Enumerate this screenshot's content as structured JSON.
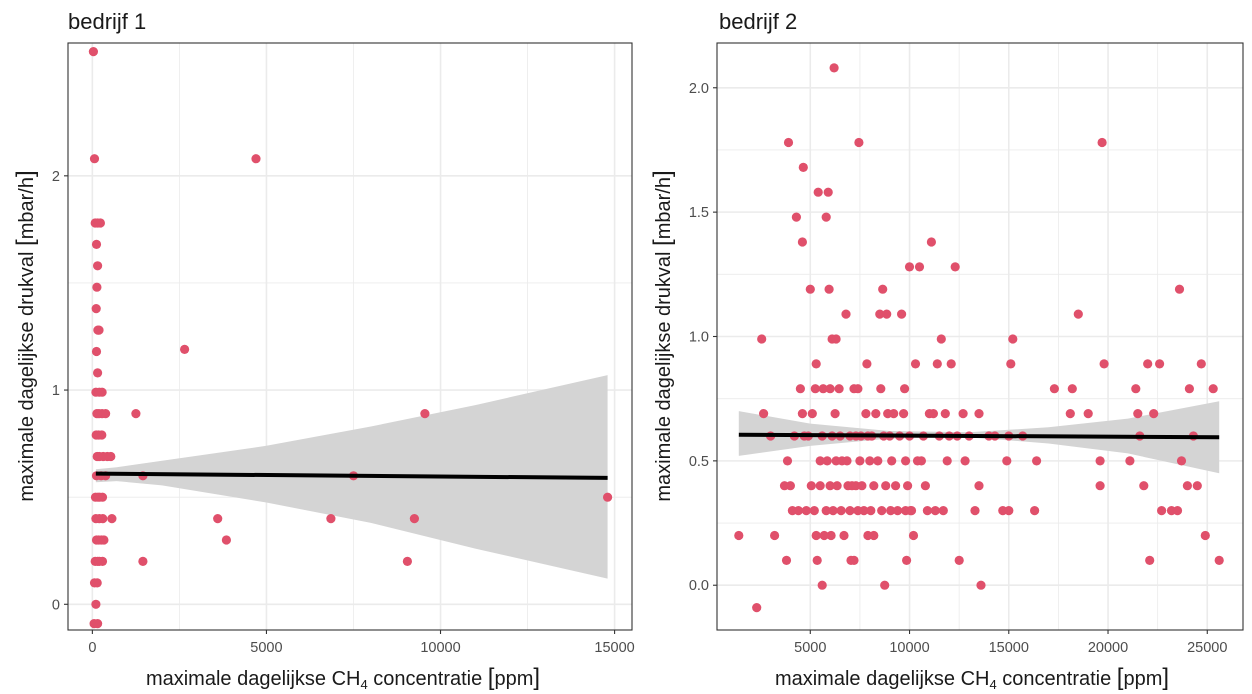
{
  "colors": {
    "point": "#e0506b",
    "fit_line": "#000000",
    "confidence_band": "#d4d4d4",
    "grid": "#ebebeb",
    "panel_border": "#333333",
    "text": "#1a1a1a",
    "tick_text": "#4d4d4d"
  },
  "chart_data": [
    {
      "type": "scatter",
      "title": "bedrijf 1",
      "xlabel": {
        "pre": "maximale dagelijkse CH",
        "sub": "4",
        "post": " concentratie ",
        "lb": "[",
        "unit": "ppm",
        "rb": "]"
      },
      "ylabel": {
        "pre": "maximale dagelijkse drukval ",
        "lb": "[",
        "unit": "mbar/h",
        "rb": "]"
      },
      "xlim": [
        -700,
        15500
      ],
      "ylim": [
        -0.12,
        2.62
      ],
      "xticks": [
        0,
        5000,
        10000,
        15000
      ],
      "xtick_labels": [
        "0",
        "5000",
        "10000",
        "15000"
      ],
      "yticks": [
        0,
        1,
        2
      ],
      "ytick_labels": [
        "0",
        "1",
        "2"
      ],
      "grid": true,
      "fit": {
        "x0": 100,
        "y0": 0.61,
        "x1": 14800,
        "y1": 0.59
      },
      "ribbon": {
        "x": [
          100,
          700,
          2000,
          5000,
          8000,
          11000,
          14800
        ],
        "upper": [
          0.63,
          0.64,
          0.67,
          0.74,
          0.83,
          0.93,
          1.07
        ],
        "lower": [
          0.57,
          0.575,
          0.555,
          0.475,
          0.38,
          0.26,
          0.12
        ]
      },
      "points": [
        [
          30,
          2.58
        ],
        [
          60,
          2.08
        ],
        [
          80,
          1.78
        ],
        [
          150,
          1.78
        ],
        [
          230,
          1.78
        ],
        [
          120,
          1.68
        ],
        [
          150,
          1.58
        ],
        [
          130,
          1.48
        ],
        [
          110,
          1.38
        ],
        [
          160,
          1.28
        ],
        [
          190,
          1.28
        ],
        [
          120,
          1.18
        ],
        [
          150,
          1.08
        ],
        [
          100,
          0.99
        ],
        [
          200,
          0.99
        ],
        [
          280,
          0.99
        ],
        [
          130,
          0.89
        ],
        [
          190,
          0.89
        ],
        [
          280,
          0.89
        ],
        [
          380,
          0.89
        ],
        [
          110,
          0.79
        ],
        [
          180,
          0.79
        ],
        [
          270,
          0.79
        ],
        [
          140,
          0.69
        ],
        [
          200,
          0.69
        ],
        [
          310,
          0.69
        ],
        [
          430,
          0.69
        ],
        [
          120,
          0.6
        ],
        [
          250,
          0.6
        ],
        [
          380,
          0.6
        ],
        [
          90,
          0.5
        ],
        [
          160,
          0.5
        ],
        [
          210,
          0.5
        ],
        [
          290,
          0.5
        ],
        [
          100,
          0.4
        ],
        [
          200,
          0.4
        ],
        [
          300,
          0.4
        ],
        [
          120,
          0.3
        ],
        [
          180,
          0.3
        ],
        [
          260,
          0.3
        ],
        [
          330,
          0.3
        ],
        [
          80,
          0.2
        ],
        [
          150,
          0.2
        ],
        [
          200,
          0.2
        ],
        [
          290,
          0.2
        ],
        [
          60,
          0.1
        ],
        [
          140,
          0.1
        ],
        [
          100,
          0.0
        ],
        [
          50,
          -0.09
        ],
        [
          150,
          -0.09
        ],
        [
          530,
          0.69
        ],
        [
          560,
          0.4
        ],
        [
          1250,
          0.89
        ],
        [
          1450,
          0.6
        ],
        [
          1450,
          0.2
        ],
        [
          2650,
          1.19
        ],
        [
          3600,
          0.4
        ],
        [
          3850,
          0.3
        ],
        [
          4700,
          2.08
        ],
        [
          6850,
          0.4
        ],
        [
          7500,
          0.6
        ],
        [
          9050,
          0.2
        ],
        [
          9250,
          0.4
        ],
        [
          9550,
          0.89
        ],
        [
          14800,
          0.5
        ]
      ]
    },
    {
      "type": "scatter",
      "title": "bedrijf 2",
      "xlabel": {
        "pre": "maximale dagelijkse CH",
        "sub": "4",
        "post": " concentratie ",
        "lb": "[",
        "unit": "ppm",
        "rb": "]"
      },
      "ylabel": {
        "pre": "maximale dagelijkse drukval ",
        "lb": "[",
        "unit": "mbar/h",
        "rb": "]"
      },
      "xlim": [
        300,
        26800
      ],
      "ylim": [
        -0.18,
        2.18
      ],
      "xticks": [
        5000,
        10000,
        15000,
        20000,
        25000
      ],
      "xtick_labels": [
        "5000",
        "10000",
        "15000",
        "20000",
        "25000"
      ],
      "yticks": [
        0.0,
        0.5,
        1.0,
        1.5,
        2.0
      ],
      "ytick_labels": [
        "0.0",
        "0.5",
        "1.0",
        "1.5",
        "2.0"
      ],
      "grid": true,
      "fit": {
        "x0": 1400,
        "y0": 0.605,
        "x1": 25600,
        "y1": 0.595
      },
      "ribbon": {
        "x": [
          1400,
          5000,
          9000,
          13000,
          17000,
          21000,
          25600
        ],
        "upper": [
          0.7,
          0.65,
          0.62,
          0.615,
          0.635,
          0.67,
          0.74
        ],
        "lower": [
          0.52,
          0.56,
          0.59,
          0.595,
          0.57,
          0.53,
          0.45
        ]
      },
      "points": [
        [
          1400,
          0.2
        ],
        [
          2300,
          -0.09
        ],
        [
          2550,
          0.99
        ],
        [
          2650,
          0.69
        ],
        [
          3000,
          0.6
        ],
        [
          3200,
          0.2
        ],
        [
          3700,
          0.4
        ],
        [
          3800,
          0.1
        ],
        [
          3850,
          0.5
        ],
        [
          3900,
          1.78
        ],
        [
          4000,
          0.4
        ],
        [
          4100,
          0.3
        ],
        [
          4200,
          0.6
        ],
        [
          4300,
          1.48
        ],
        [
          4400,
          0.3
        ],
        [
          4500,
          0.79
        ],
        [
          4600,
          1.38
        ],
        [
          4600,
          0.69
        ],
        [
          4650,
          1.68
        ],
        [
          4700,
          0.6
        ],
        [
          4800,
          0.3
        ],
        [
          4900,
          0.6
        ],
        [
          5000,
          1.19
        ],
        [
          5050,
          0.4
        ],
        [
          5100,
          0.69
        ],
        [
          5200,
          0.3
        ],
        [
          5250,
          0.79
        ],
        [
          5300,
          0.89
        ],
        [
          5300,
          0.2
        ],
        [
          5350,
          0.1
        ],
        [
          5400,
          1.58
        ],
        [
          5500,
          0.5
        ],
        [
          5500,
          0.4
        ],
        [
          5600,
          0.0
        ],
        [
          5600,
          0.6
        ],
        [
          5650,
          0.79
        ],
        [
          5700,
          0.2
        ],
        [
          5800,
          1.48
        ],
        [
          5800,
          0.3
        ],
        [
          5850,
          0.5
        ],
        [
          5900,
          1.58
        ],
        [
          5950,
          1.19
        ],
        [
          6000,
          0.79
        ],
        [
          6000,
          0.4
        ],
        [
          6050,
          0.2
        ],
        [
          6100,
          0.99
        ],
        [
          6100,
          0.6
        ],
        [
          6150,
          0.3
        ],
        [
          6200,
          2.08
        ],
        [
          6250,
          0.69
        ],
        [
          6300,
          0.99
        ],
        [
          6300,
          0.5
        ],
        [
          6350,
          0.4
        ],
        [
          6450,
          0.79
        ],
        [
          6500,
          0.6
        ],
        [
          6550,
          0.3
        ],
        [
          6600,
          0.5
        ],
        [
          6700,
          0.2
        ],
        [
          6800,
          1.09
        ],
        [
          6850,
          0.5
        ],
        [
          6900,
          0.4
        ],
        [
          7000,
          0.3
        ],
        [
          7000,
          0.6
        ],
        [
          7050,
          0.1
        ],
        [
          7100,
          0.4
        ],
        [
          7200,
          0.79
        ],
        [
          7200,
          0.1
        ],
        [
          7300,
          0.6
        ],
        [
          7300,
          0.4
        ],
        [
          7400,
          0.79
        ],
        [
          7400,
          0.3
        ],
        [
          7450,
          1.78
        ],
        [
          7500,
          0.5
        ],
        [
          7550,
          0.6
        ],
        [
          7600,
          0.4
        ],
        [
          7700,
          0.3
        ],
        [
          7800,
          0.69
        ],
        [
          7850,
          0.89
        ],
        [
          7900,
          0.6
        ],
        [
          7900,
          0.2
        ],
        [
          8000,
          0.5
        ],
        [
          8050,
          0.3
        ],
        [
          8100,
          0.6
        ],
        [
          8200,
          0.4
        ],
        [
          8200,
          0.2
        ],
        [
          8300,
          0.69
        ],
        [
          8400,
          0.5
        ],
        [
          8500,
          1.09
        ],
        [
          8550,
          0.79
        ],
        [
          8600,
          0.3
        ],
        [
          8650,
          1.19
        ],
        [
          8700,
          0.6
        ],
        [
          8750,
          0.0
        ],
        [
          8800,
          0.4
        ],
        [
          8850,
          1.09
        ],
        [
          8900,
          0.69
        ],
        [
          9000,
          0.6
        ],
        [
          9050,
          0.3
        ],
        [
          9100,
          0.5
        ],
        [
          9200,
          0.69
        ],
        [
          9300,
          0.4
        ],
        [
          9400,
          0.3
        ],
        [
          9500,
          0.6
        ],
        [
          9600,
          1.09
        ],
        [
          9700,
          0.69
        ],
        [
          9750,
          0.79
        ],
        [
          9800,
          0.3
        ],
        [
          9800,
          0.5
        ],
        [
          9850,
          0.1
        ],
        [
          9900,
          0.4
        ],
        [
          10000,
          1.28
        ],
        [
          10000,
          0.6
        ],
        [
          10050,
          0.3
        ],
        [
          10100,
          0.3
        ],
        [
          10200,
          0.2
        ],
        [
          10300,
          0.89
        ],
        [
          10400,
          0.5
        ],
        [
          10500,
          1.28
        ],
        [
          10600,
          0.5
        ],
        [
          10700,
          0.6
        ],
        [
          10800,
          0.4
        ],
        [
          10900,
          0.3
        ],
        [
          11000,
          0.69
        ],
        [
          11100,
          1.38
        ],
        [
          11200,
          0.69
        ],
        [
          11300,
          0.3
        ],
        [
          11400,
          0.89
        ],
        [
          11500,
          0.6
        ],
        [
          11600,
          0.99
        ],
        [
          11700,
          0.3
        ],
        [
          11800,
          0.69
        ],
        [
          11900,
          0.5
        ],
        [
          12000,
          0.6
        ],
        [
          12100,
          0.89
        ],
        [
          12300,
          1.28
        ],
        [
          12400,
          0.6
        ],
        [
          12500,
          0.1
        ],
        [
          12700,
          0.69
        ],
        [
          12800,
          0.5
        ],
        [
          13000,
          0.6
        ],
        [
          13300,
          0.3
        ],
        [
          13500,
          0.69
        ],
        [
          13500,
          0.4
        ],
        [
          13600,
          0.0
        ],
        [
          14000,
          0.6
        ],
        [
          14300,
          0.6
        ],
        [
          14700,
          0.3
        ],
        [
          14900,
          0.5
        ],
        [
          15000,
          0.6
        ],
        [
          15000,
          0.3
        ],
        [
          15100,
          0.89
        ],
        [
          15200,
          0.99
        ],
        [
          15700,
          0.6
        ],
        [
          16300,
          0.3
        ],
        [
          16400,
          0.5
        ],
        [
          17300,
          0.79
        ],
        [
          18100,
          0.69
        ],
        [
          18200,
          0.79
        ],
        [
          18500,
          1.09
        ],
        [
          19000,
          0.69
        ],
        [
          19600,
          0.5
        ],
        [
          19600,
          0.4
        ],
        [
          19700,
          1.78
        ],
        [
          19800,
          0.89
        ],
        [
          21100,
          0.5
        ],
        [
          21400,
          0.79
        ],
        [
          21500,
          0.69
        ],
        [
          21600,
          0.6
        ],
        [
          21800,
          0.4
        ],
        [
          22000,
          0.89
        ],
        [
          22100,
          0.1
        ],
        [
          22300,
          0.69
        ],
        [
          22600,
          0.89
        ],
        [
          22700,
          0.3
        ],
        [
          23200,
          0.3
        ],
        [
          23500,
          0.3
        ],
        [
          23600,
          1.19
        ],
        [
          23700,
          0.5
        ],
        [
          24000,
          0.4
        ],
        [
          24100,
          0.79
        ],
        [
          24300,
          0.6
        ],
        [
          24500,
          0.4
        ],
        [
          24700,
          0.89
        ],
        [
          24900,
          0.2
        ],
        [
          25300,
          0.79
        ],
        [
          25600,
          0.1
        ]
      ]
    }
  ]
}
